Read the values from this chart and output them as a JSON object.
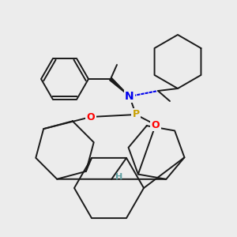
{
  "bg_color": "#ececec",
  "atom_colors": {
    "N": "#0000ee",
    "P": "#c8a000",
    "O": "#ff0000",
    "H": "#5f9ea0",
    "C": "#1a1a1a"
  },
  "figsize": [
    3.0,
    3.0
  ],
  "dpi": 100,
  "lw": 1.4
}
